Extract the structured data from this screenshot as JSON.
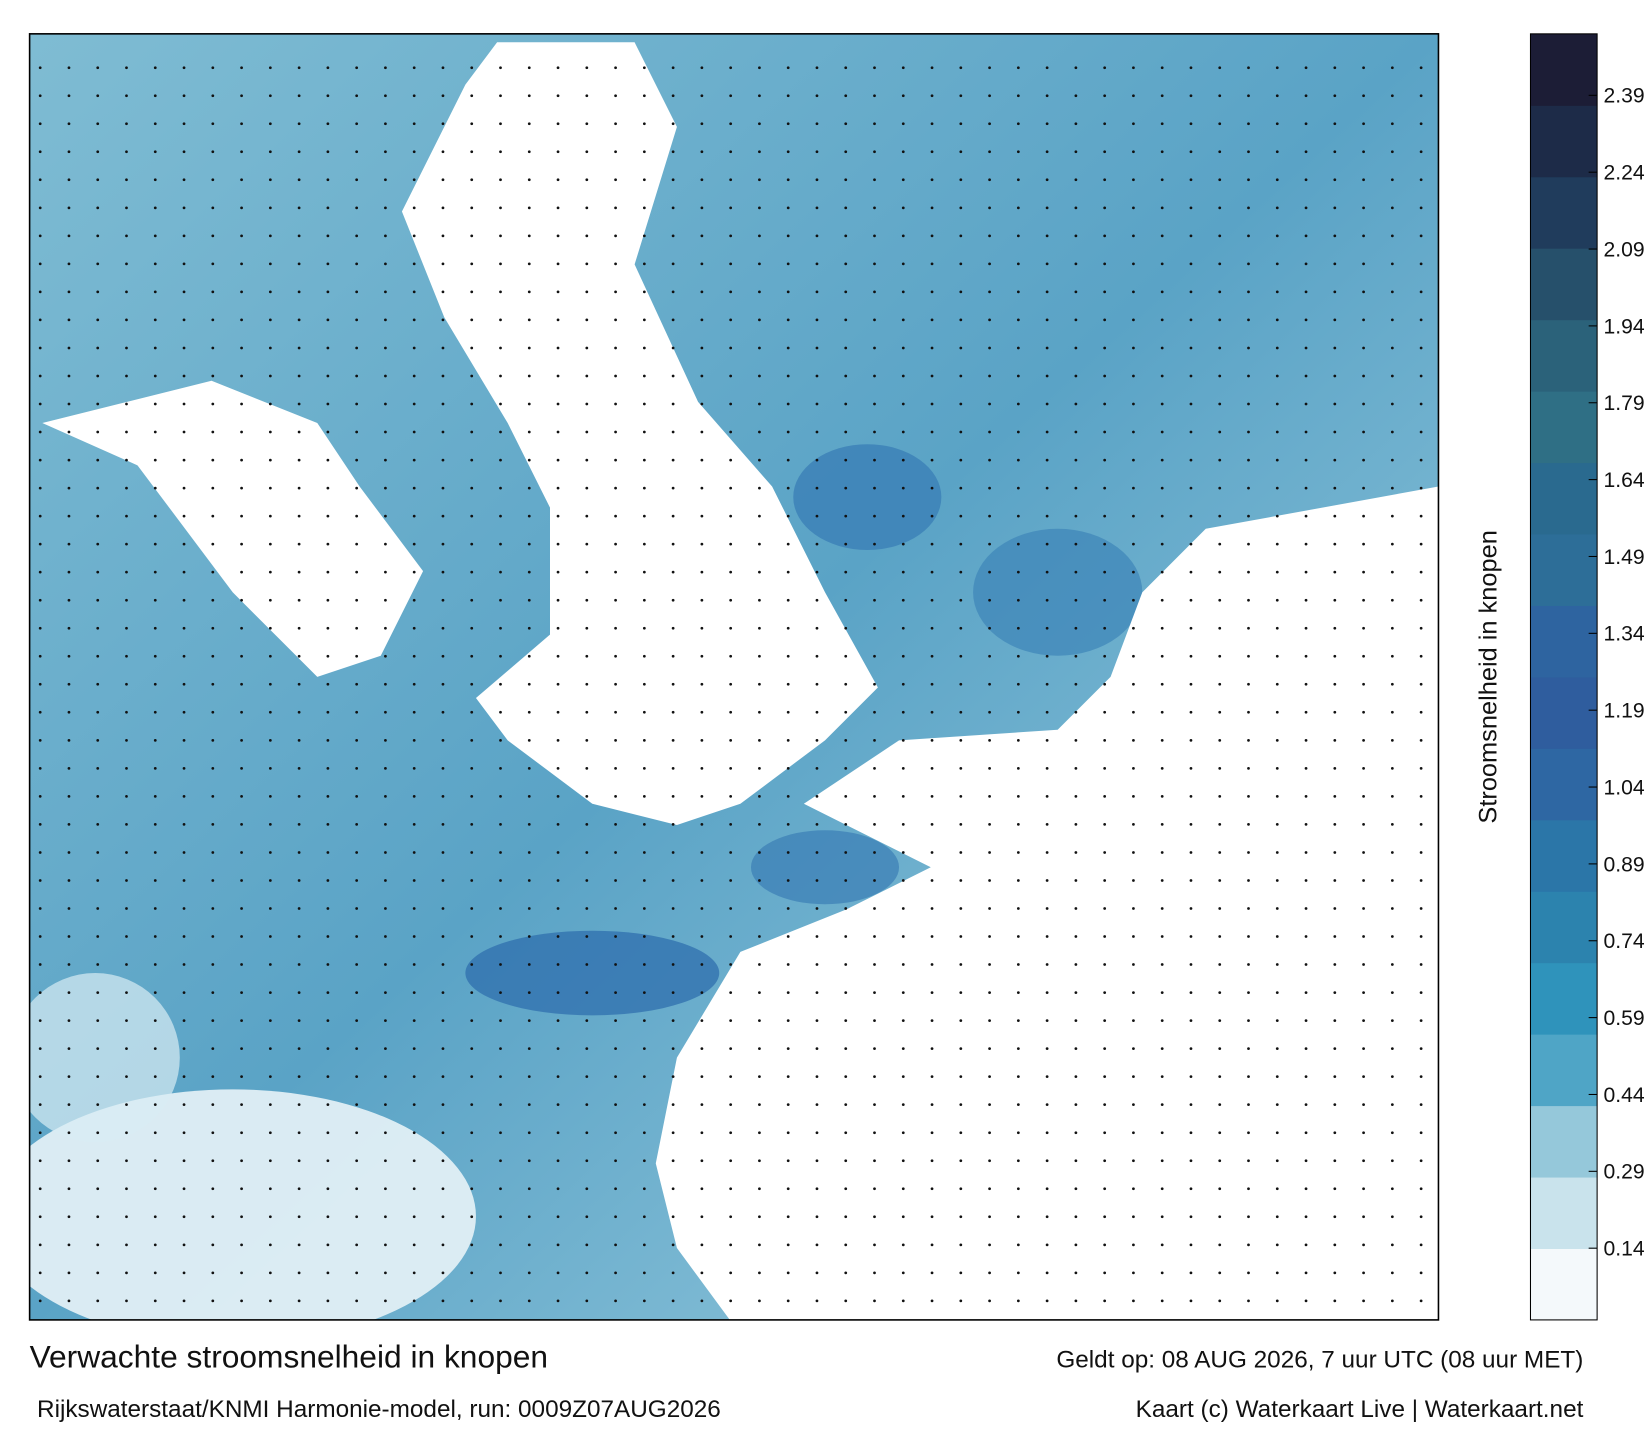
{
  "title": "Verwachte stroomsnelheid in knopen",
  "subtitle": "Rijkswaterstaat/KNMI Harmonie-model, run: 0009Z07AUG2026",
  "valid": "Geldt op: 08 AUG 2026, 7 uur UTC (08 uur MET)",
  "credit": "Kaart (c) Waterkaart Live | Waterkaart.net",
  "colorbar": {
    "label": "Stroomsnelheid in knopen",
    "lim": [
      0,
      2.51
    ],
    "ticks": [
      0.14,
      0.29,
      {
        "value": 0.44,
        "label": "0.44"
      },
      0.59,
      0.74,
      0.89,
      1.04,
      1.19,
      1.34,
      1.49,
      1.64,
      1.79,
      1.94,
      2.09,
      2.24,
      2.39
    ],
    "colors": [
      "#f4f9fb",
      "#c9e3ec",
      "#95c8da",
      "#4fa5c6",
      "#2f93bb",
      "#2c83ae",
      "#2b76a8",
      "#2e67a3",
      "#2f5d9e",
      "#2e64a0",
      "#2d6e98",
      "#2a6a8f",
      "#2f6f85",
      "#2b627a",
      "#26506b",
      "#203c5c",
      "#1d2b48",
      "#1c1d36"
    ]
  }
}
